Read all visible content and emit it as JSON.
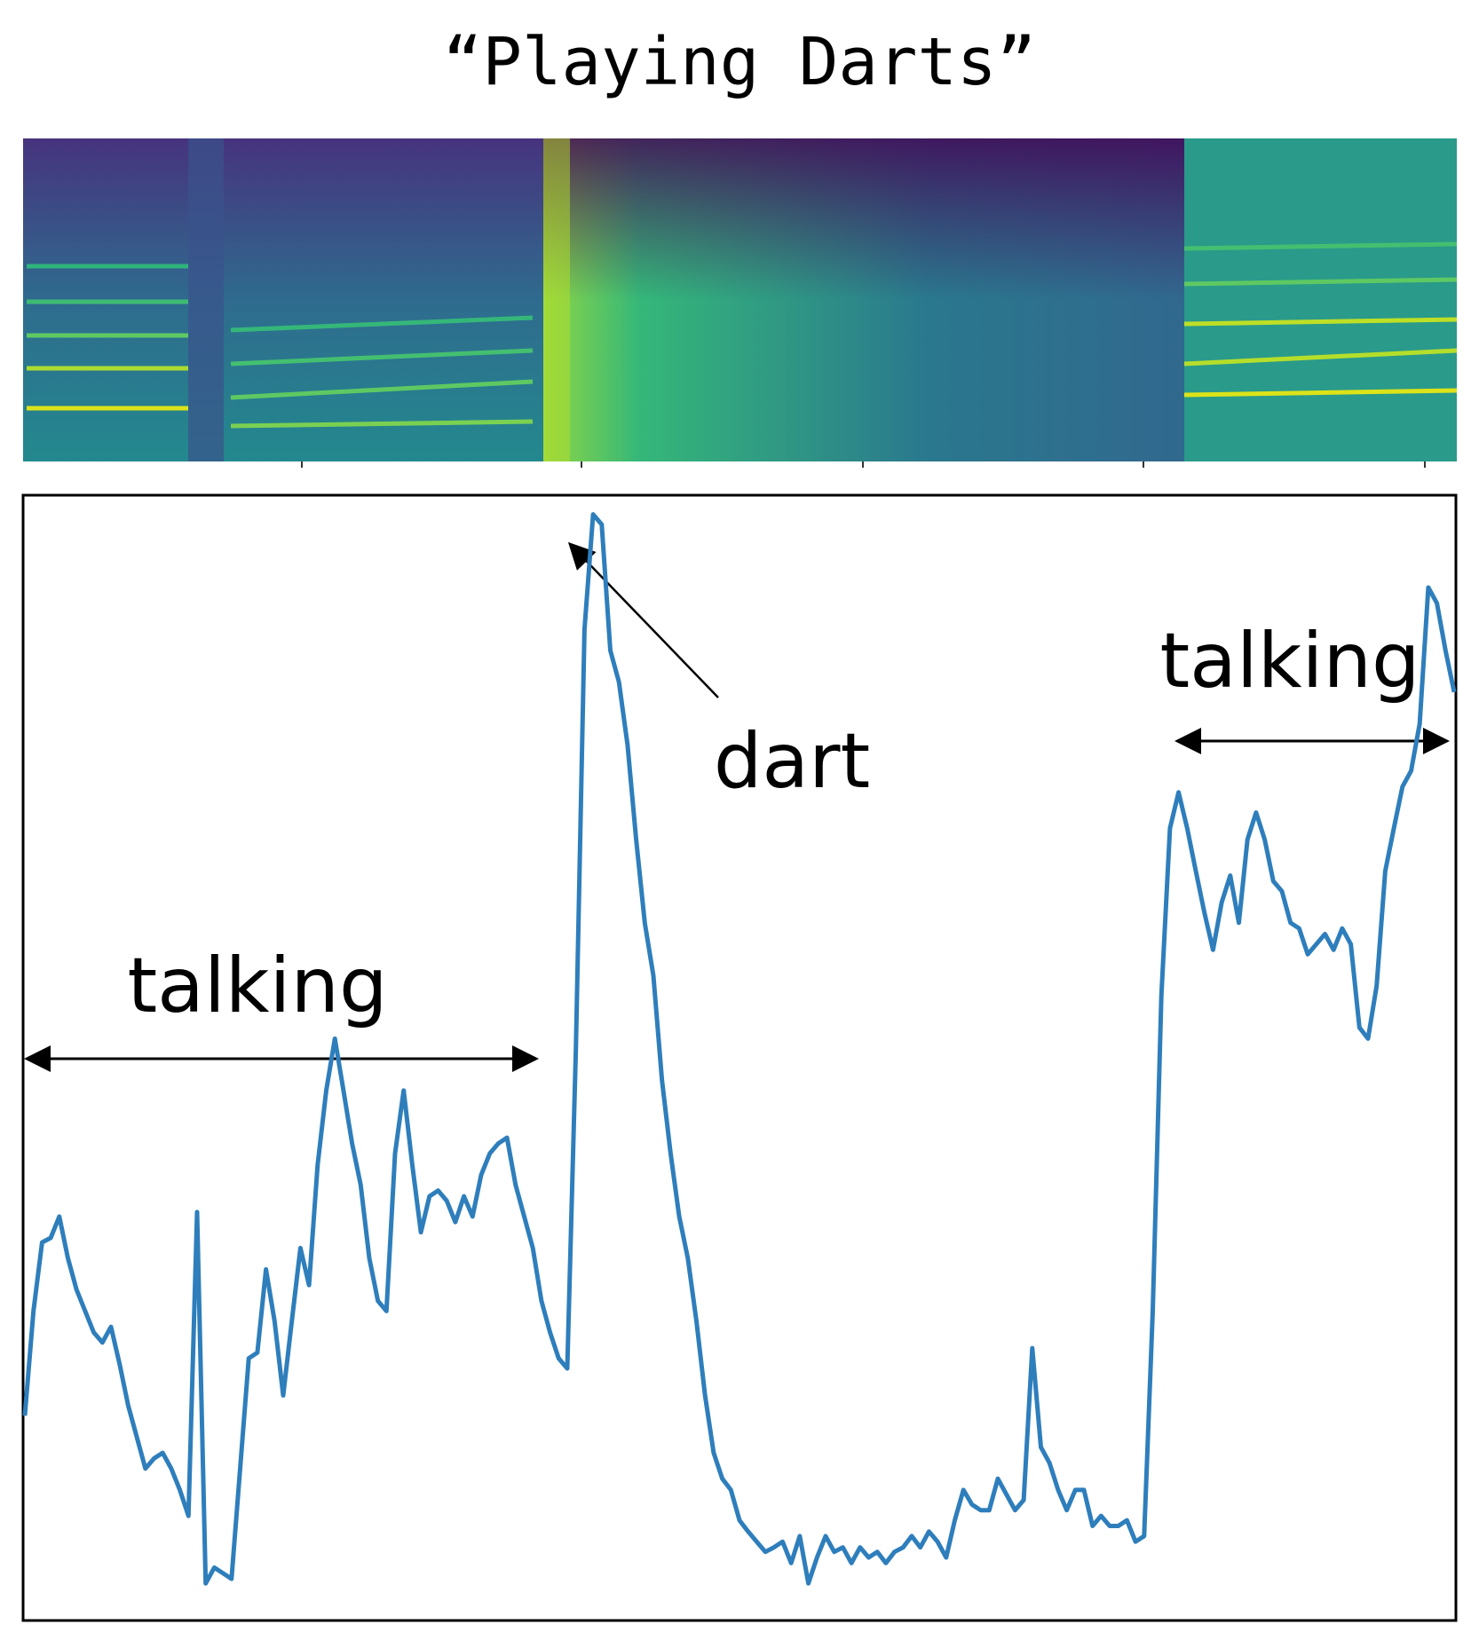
{
  "chart_data": {
    "type": "line",
    "title": "“Playing Darts”",
    "annotations": [
      "talking",
      "dart",
      "talking"
    ],
    "ylim": [
      0,
      100
    ],
    "series": [
      {
        "color": "#2e7ebc",
        "values": [
          18.2,
          27.5,
          33.6,
          34.0,
          35.9,
          32.2,
          29.4,
          27.5,
          25.6,
          24.7,
          26.1,
          22.8,
          19.1,
          16.3,
          13.5,
          14.4,
          14.9,
          13.5,
          11.6,
          9.3,
          36.3,
          3.3,
          4.7,
          4.2,
          3.7,
          13.5,
          23.3,
          23.8,
          31.2,
          26.6,
          20.0,
          26.6,
          33.1,
          29.8,
          40.5,
          47.1,
          51.7,
          47.1,
          42.4,
          38.7,
          32.2,
          28.4,
          27.5,
          41.5,
          47.1,
          40.5,
          34.5,
          37.7,
          38.2,
          37.3,
          35.4,
          37.7,
          35.9,
          39.6,
          41.5,
          42.4,
          42.9,
          38.7,
          35.9,
          33.1,
          28.4,
          25.6,
          23.3,
          22.4,
          50.8,
          88.1,
          98.3,
          97.4,
          86.2,
          83.4,
          77.8,
          69.4,
          62.0,
          57.3,
          48.0,
          41.5,
          35.9,
          32.2,
          26.6,
          20.0,
          14.9,
          12.6,
          11.6,
          8.9,
          7.9,
          7.0,
          6.1,
          6.5,
          7.0,
          5.1,
          7.5,
          3.3,
          5.6,
          7.5,
          6.1,
          6.5,
          5.1,
          6.5,
          5.6,
          6.1,
          5.1,
          6.1,
          6.5,
          7.5,
          6.5,
          7.9,
          7.0,
          5.6,
          8.9,
          11.6,
          10.3,
          9.8,
          9.8,
          12.6,
          11.2,
          9.8,
          10.7,
          24.2,
          15.4,
          14.0,
          11.6,
          9.8,
          11.6,
          11.6,
          8.4,
          9.3,
          8.4,
          8.4,
          8.9,
          7.0,
          7.5,
          27.5,
          55.5,
          70.4,
          73.6,
          70.4,
          66.6,
          62.9,
          59.6,
          63.8,
          66.2,
          62.0,
          69.4,
          71.8,
          69.4,
          65.7,
          64.8,
          62.0,
          61.5,
          59.2,
          60.1,
          61.0,
          59.6,
          61.5,
          60.1,
          52.7,
          51.7,
          56.4,
          66.6,
          70.4,
          74.1,
          75.5,
          79.7,
          91.8,
          90.4,
          86.2,
          82.5
        ]
      }
    ]
  }
}
